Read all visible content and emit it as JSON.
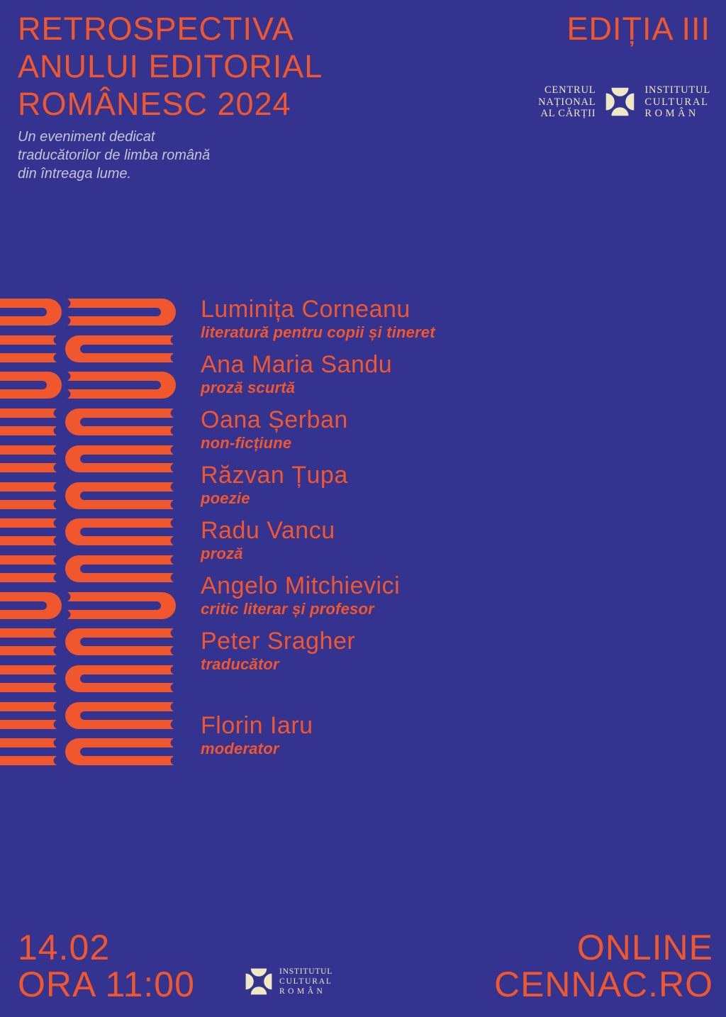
{
  "colors": {
    "background": "#343390",
    "accent": "#F1572D",
    "cream": "#EFE8C6",
    "muted": "#C6C3D6"
  },
  "header": {
    "title_lines": [
      "RETROSPECTIVA",
      "ANULUI EDITORIAL",
      "ROMÂNESC 2024"
    ],
    "subtitle_lines": [
      "Un eveniment dedicat",
      "traducătorilor de limba română",
      "din întreaga lume."
    ],
    "edition": "EDIȚIA III",
    "cnc_logo_lines": [
      "CENTRUL",
      "NAȚIONAL",
      "AL CĂRȚII"
    ],
    "icr_logo_lines": [
      "INSTITUTUL",
      "CULTURAL",
      "ROMÂN"
    ]
  },
  "speakers": [
    {
      "name": "Luminița Corneanu",
      "role": "literatură pentru copii și tineret"
    },
    {
      "name": "Ana Maria Sandu",
      "role": "proză scurtă"
    },
    {
      "name": "Oana Șerban",
      "role": "non-ficțiune"
    },
    {
      "name": "Răzvan Țupa",
      "role": "poezie"
    },
    {
      "name": "Radu Vancu",
      "role": "proză"
    },
    {
      "name": "Angelo Mitchievici",
      "role": "critic literar și profesor"
    },
    {
      "name": "Peter Sragher",
      "role": "traducător"
    },
    {
      "name": "Florin Iaru",
      "role": "moderator"
    }
  ],
  "footer": {
    "date": "14.02",
    "time": "ORA 11:00",
    "channel": "ONLINE",
    "site": "CENNAC.RO",
    "icr_logo_lines": [
      "INSTITUTUL",
      "CULTURAL",
      "ROMÂN"
    ]
  },
  "illustration": {
    "rows": [
      "R",
      "L",
      "R",
      "L",
      "L",
      "L",
      "L",
      "L",
      "R",
      "L",
      "L",
      "L",
      "L"
    ]
  }
}
